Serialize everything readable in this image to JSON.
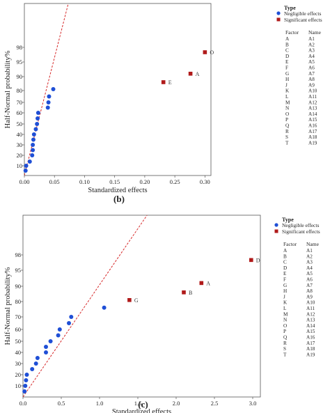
{
  "chart_data": [
    {
      "type": "scatter",
      "panel_label": "(b)",
      "xlabel": "Standardized effects",
      "ylabel": "Half-Normal probability%",
      "xlim": [
        0,
        0.31
      ],
      "xticks": [
        "0.00",
        "0.05",
        "0.10",
        "0.15",
        "0.20",
        "0.25",
        "0.30"
      ],
      "xtick_values": [
        0,
        0.05,
        0.1,
        0.15,
        0.2,
        0.25,
        0.3
      ],
      "yticks": [
        "10",
        "20",
        "30",
        "40",
        "50",
        "60",
        "70",
        "80",
        "90",
        "95",
        "98"
      ],
      "ytick_values": [
        10,
        20,
        30,
        40,
        50,
        60,
        70,
        80,
        90,
        95,
        98
      ],
      "grid": false,
      "legend": {
        "title": "Type",
        "placement": "right",
        "items": [
          {
            "label": "Negligible effects",
            "color": "#1f4fd6",
            "marker": "circle"
          },
          {
            "label": "Significant effects",
            "color": "#b01a1a",
            "marker": "square"
          }
        ]
      },
      "factor_table": {
        "headers": [
          "Factor",
          "Name"
        ],
        "rows": [
          [
            "A",
            "A1"
          ],
          [
            "B",
            "A2"
          ],
          [
            "C",
            "A3"
          ],
          [
            "D",
            "A4"
          ],
          [
            "E",
            "A5"
          ],
          [
            "F",
            "A6"
          ],
          [
            "G",
            "A7"
          ],
          [
            "H",
            "A8"
          ],
          [
            "J",
            "A9"
          ],
          [
            "K",
            "A10"
          ],
          [
            "L",
            "A11"
          ],
          [
            "M",
            "A12"
          ],
          [
            "N",
            "A13"
          ],
          [
            "O",
            "A14"
          ],
          [
            "P",
            "A15"
          ],
          [
            "Q",
            "A16"
          ],
          [
            "R",
            "A17"
          ],
          [
            "S",
            "A18"
          ],
          [
            "T",
            "A19"
          ]
        ]
      },
      "reference_line": {
        "color": "#d62728",
        "style": "dashed",
        "points": [
          [
            0,
            0
          ],
          [
            0.073,
            99.4
          ]
        ]
      },
      "series": [
        {
          "name": "Negligible effects",
          "color": "#1f4fd6",
          "points": [
            [
              0.002,
              5
            ],
            [
              0.003,
              10
            ],
            [
              0.009,
              14
            ],
            [
              0.013,
              20
            ],
            [
              0.014,
              25
            ],
            [
              0.014,
              30
            ],
            [
              0.015,
              35
            ],
            [
              0.016,
              40
            ],
            [
              0.019,
              45
            ],
            [
              0.021,
              50
            ],
            [
              0.022,
              55
            ],
            [
              0.023,
              60
            ],
            [
              0.039,
              65
            ],
            [
              0.04,
              70
            ],
            [
              0.041,
              75
            ],
            [
              0.048,
              81
            ]
          ]
        },
        {
          "name": "Significant effects",
          "color": "#b01a1a",
          "points": [
            [
              0.231,
              86
            ],
            [
              0.276,
              91
            ],
            [
              0.3,
              97
            ]
          ],
          "labels": [
            "E",
            "A",
            "O"
          ]
        }
      ]
    },
    {
      "type": "scatter",
      "panel_label": "(c)",
      "xlabel": "Standardized effects",
      "ylabel": "Half-Normal probability%",
      "xlim": [
        0,
        3.1
      ],
      "xticks": [
        "0.0",
        "0.5",
        "1.0",
        "1.5",
        "2.0",
        "2.5",
        "3.0"
      ],
      "xtick_values": [
        0,
        0.5,
        1.0,
        1.5,
        2.0,
        2.5,
        3.0
      ],
      "yticks": [
        "10",
        "20",
        "30",
        "40",
        "50",
        "60",
        "70",
        "80",
        "90",
        "95",
        "98"
      ],
      "ytick_values": [
        10,
        20,
        30,
        40,
        50,
        60,
        70,
        80,
        90,
        95,
        98
      ],
      "grid": false,
      "legend": {
        "title": "Type",
        "placement": "right",
        "items": [
          {
            "label": "Negligible effects",
            "color": "#1f4fd6",
            "marker": "circle"
          },
          {
            "label": "Significant effects",
            "color": "#b01a1a",
            "marker": "square"
          }
        ]
      },
      "factor_table": {
        "headers": [
          "Factor",
          "Name"
        ],
        "rows": [
          [
            "A",
            "A1"
          ],
          [
            "B",
            "A2"
          ],
          [
            "C",
            "A3"
          ],
          [
            "D",
            "A4"
          ],
          [
            "E",
            "A5"
          ],
          [
            "F",
            "A6"
          ],
          [
            "G",
            "A7"
          ],
          [
            "H",
            "A8"
          ],
          [
            "J",
            "A9"
          ],
          [
            "K",
            "A10"
          ],
          [
            "L",
            "A11"
          ],
          [
            "M",
            "A12"
          ],
          [
            "N",
            "A13"
          ],
          [
            "O",
            "A14"
          ],
          [
            "P",
            "A15"
          ],
          [
            "Q",
            "A16"
          ],
          [
            "R",
            "A17"
          ],
          [
            "S",
            "A18"
          ],
          [
            "T",
            "A19"
          ]
        ]
      },
      "reference_line": {
        "color": "#d62728",
        "style": "dashed",
        "points": [
          [
            0,
            0
          ],
          [
            1.62,
            99.4
          ]
        ]
      },
      "series": [
        {
          "name": "Negligible effects",
          "color": "#1f4fd6",
          "points": [
            [
              0.02,
              5
            ],
            [
              0.03,
              10
            ],
            [
              0.04,
              15
            ],
            [
              0.05,
              20
            ],
            [
              0.12,
              25
            ],
            [
              0.17,
              30
            ],
            [
              0.19,
              35
            ],
            [
              0.3,
              40
            ],
            [
              0.3,
              45
            ],
            [
              0.36,
              50
            ],
            [
              0.46,
              55
            ],
            [
              0.48,
              60
            ],
            [
              0.6,
              65
            ],
            [
              0.63,
              70
            ],
            [
              1.06,
              76
            ]
          ]
        },
        {
          "name": "Significant effects",
          "color": "#b01a1a",
          "points": [
            [
              1.39,
              81
            ],
            [
              2.1,
              86
            ],
            [
              2.33,
              91
            ],
            [
              2.98,
              97
            ]
          ],
          "labels": [
            "G",
            "B",
            "A",
            "D"
          ]
        }
      ]
    }
  ]
}
